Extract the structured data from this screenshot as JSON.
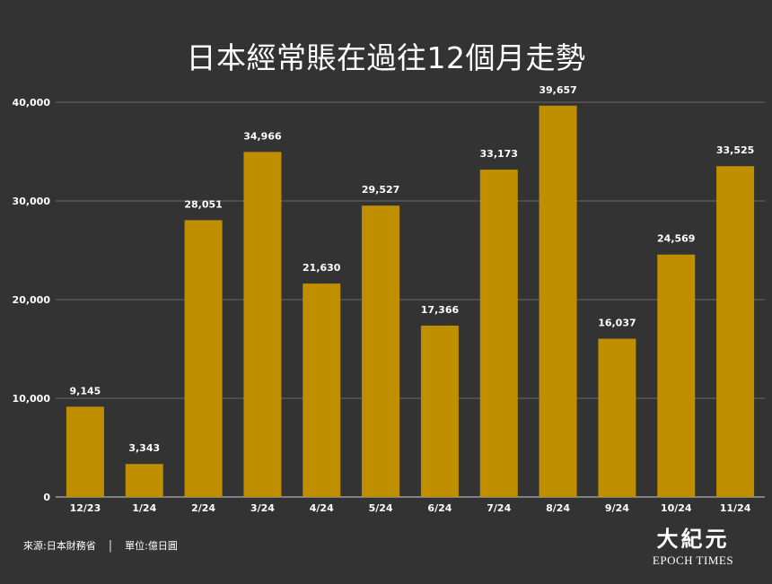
{
  "chart_data": {
    "type": "bar",
    "title": "日本經常賬在過往12個月走勢",
    "categories": [
      "12/23",
      "1/24",
      "2/24",
      "3/24",
      "4/24",
      "5/24",
      "6/24",
      "7/24",
      "8/24",
      "9/24",
      "10/24",
      "11/24"
    ],
    "values": [
      9145,
      3343,
      28051,
      34966,
      21630,
      29527,
      17366,
      33173,
      39657,
      16037,
      24569,
      33525
    ],
    "value_labels": [
      "9,145",
      "3,343",
      "28,051",
      "34,966",
      "21,630",
      "29,527",
      "17,366",
      "33,173",
      "39,657",
      "16,037",
      "24,569",
      "33,525"
    ],
    "yticks": [
      0,
      10000,
      20000,
      30000,
      40000
    ],
    "ytick_labels": [
      "0",
      "10,000",
      "20,000",
      "30,000",
      "40,000"
    ],
    "ylim": [
      0,
      40000
    ],
    "xlabel": "",
    "ylabel": "",
    "grid": true,
    "bar_color": "#BF8F00"
  },
  "footer": {
    "source": "來源:日本財務省",
    "separator": "|",
    "unit": "單位:億日圓"
  },
  "logo": {
    "chinese": "大紀元",
    "english": "EPOCH TIMES"
  }
}
